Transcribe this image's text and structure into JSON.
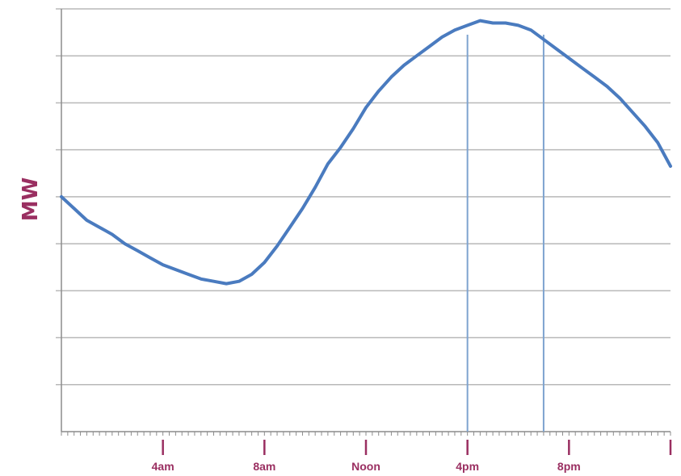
{
  "chart_data": {
    "type": "line",
    "title": "",
    "xlabel": "",
    "ylabel": "MW",
    "x_unit": "hour of day",
    "xlim": [
      0,
      24
    ],
    "ylim": [
      0,
      9
    ],
    "grid": true,
    "gridline_count": 9,
    "tick_labels": [
      {
        "x": 4,
        "label": "4am"
      },
      {
        "x": 8,
        "label": "8am"
      },
      {
        "x": 12,
        "label": "Noon"
      },
      {
        "x": 16,
        "label": "4pm"
      },
      {
        "x": 20,
        "label": "8pm"
      },
      {
        "x": 24,
        "label": ""
      }
    ],
    "reference_lines": [
      16,
      19
    ],
    "series": [
      {
        "color": "#4a7bbf",
        "x": [
          0,
          0.5,
          1,
          1.5,
          2,
          2.5,
          3,
          3.5,
          4,
          4.5,
          5,
          5.5,
          6,
          6.5,
          7,
          7.5,
          8,
          8.5,
          9,
          9.5,
          10,
          10.5,
          11,
          11.5,
          12,
          12.5,
          13,
          13.5,
          14,
          14.5,
          15,
          15.5,
          16,
          16.5,
          17,
          17.5,
          18,
          18.5,
          19,
          19.5,
          20,
          20.5,
          21,
          21.5,
          22,
          22.5,
          23,
          23.5,
          24
        ],
        "values": [
          5.0,
          4.75,
          4.5,
          4.35,
          4.2,
          4.0,
          3.85,
          3.7,
          3.55,
          3.45,
          3.35,
          3.25,
          3.2,
          3.15,
          3.2,
          3.35,
          3.6,
          3.95,
          4.35,
          4.75,
          5.2,
          5.7,
          6.05,
          6.45,
          6.9,
          7.25,
          7.55,
          7.8,
          8.0,
          8.2,
          8.4,
          8.55,
          8.65,
          8.75,
          8.7,
          8.7,
          8.65,
          8.55,
          8.35,
          8.15,
          7.95,
          7.75,
          7.55,
          7.35,
          7.1,
          6.8,
          6.5,
          6.15,
          5.65
        ]
      }
    ],
    "colors": {
      "line": "#4a7bbf",
      "reference_line": "#7ea3cf",
      "grid": "#b8b8b8",
      "axis": "#8c8c8c",
      "label": "#9a2f61"
    }
  }
}
